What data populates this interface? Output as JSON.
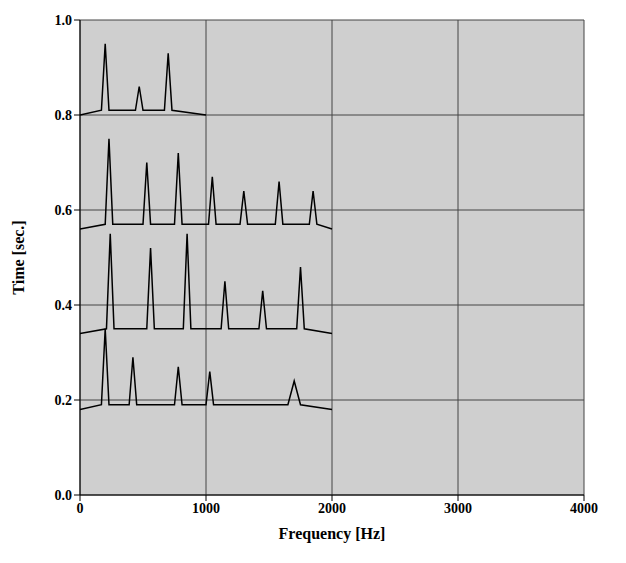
{
  "chart_data": {
    "type": "line",
    "x_label": "Frequency [Hz]",
    "y_label": "Time [sec.]",
    "xlim": [
      0,
      4000
    ],
    "xticks": [
      0,
      1000,
      2000,
      3000,
      4000
    ],
    "ylim": [
      0,
      1.0
    ],
    "yticks": [
      {
        "value": 0,
        "label": "0.0"
      },
      {
        "value": 0.2,
        "label": "0.2"
      },
      {
        "value": 0.4,
        "label": "0.4"
      },
      {
        "value": 0.6,
        "label": "0.6"
      },
      {
        "value": 0.8,
        "label": "0.8"
      },
      {
        "value": 1.0,
        "label": "1.0"
      }
    ],
    "grid": true,
    "series": [
      {
        "color": "#000000",
        "x": [
          0,
          170,
          200,
          230,
          390,
          420,
          450,
          750,
          780,
          810,
          1000,
          1030,
          1060,
          1650,
          1700,
          1750,
          2000
        ],
        "values": [
          0.18,
          0.19,
          0.35,
          0.19,
          0.19,
          0.29,
          0.19,
          0.19,
          0.27,
          0.19,
          0.19,
          0.26,
          0.19,
          0.19,
          0.24,
          0.19,
          0.18
        ]
      },
      {
        "color": "#000000",
        "x": [
          0,
          210,
          240,
          270,
          530,
          560,
          590,
          820,
          850,
          880,
          1120,
          1150,
          1180,
          1420,
          1450,
          1480,
          1720,
          1750,
          1780,
          2000
        ],
        "values": [
          0.34,
          0.35,
          0.55,
          0.35,
          0.35,
          0.52,
          0.35,
          0.35,
          0.55,
          0.35,
          0.35,
          0.45,
          0.35,
          0.35,
          0.43,
          0.35,
          0.35,
          0.48,
          0.35,
          0.34
        ]
      },
      {
        "color": "#000000",
        "x": [
          0,
          200,
          230,
          260,
          500,
          530,
          560,
          750,
          780,
          810,
          1020,
          1050,
          1080,
          1270,
          1300,
          1330,
          1550,
          1580,
          1610,
          1820,
          1850,
          1880,
          2000
        ],
        "values": [
          0.56,
          0.57,
          0.75,
          0.57,
          0.57,
          0.7,
          0.57,
          0.57,
          0.72,
          0.57,
          0.57,
          0.67,
          0.57,
          0.57,
          0.64,
          0.57,
          0.57,
          0.66,
          0.57,
          0.57,
          0.64,
          0.57,
          0.56
        ]
      },
      {
        "color": "#000000",
        "x": [
          0,
          170,
          200,
          230,
          440,
          470,
          500,
          670,
          700,
          730,
          1000
        ],
        "values": [
          0.8,
          0.81,
          0.95,
          0.81,
          0.81,
          0.86,
          0.81,
          0.81,
          0.93,
          0.81,
          0.8
        ]
      }
    ]
  }
}
